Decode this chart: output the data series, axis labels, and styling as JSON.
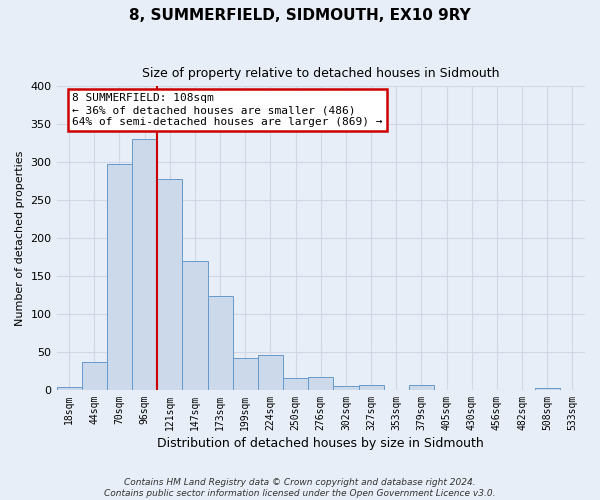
{
  "title": "8, SUMMERFIELD, SIDMOUTH, EX10 9RY",
  "subtitle": "Size of property relative to detached houses in Sidmouth",
  "xlabel": "Distribution of detached houses by size in Sidmouth",
  "ylabel": "Number of detached properties",
  "bin_labels": [
    "18sqm",
    "44sqm",
    "70sqm",
    "96sqm",
    "121sqm",
    "147sqm",
    "173sqm",
    "199sqm",
    "224sqm",
    "250sqm",
    "276sqm",
    "302sqm",
    "327sqm",
    "353sqm",
    "379sqm",
    "405sqm",
    "430sqm",
    "456sqm",
    "482sqm",
    "508sqm",
    "533sqm"
  ],
  "bar_heights": [
    4,
    37,
    297,
    330,
    278,
    169,
    123,
    42,
    46,
    16,
    17,
    5,
    6,
    0,
    6,
    0,
    0,
    0,
    0,
    2,
    0
  ],
  "bar_color": "#ccd9ea",
  "bar_edge_color": "#6699cc",
  "marker_bin_index": 3.5,
  "annotation_text": "8 SUMMERFIELD: 108sqm\n← 36% of detached houses are smaller (486)\n64% of semi-detached houses are larger (869) →",
  "annotation_box_color": "white",
  "annotation_box_edge_color": "#cc0000",
  "marker_line_color": "#cc0000",
  "grid_color": "#d0d8e8",
  "footer_line1": "Contains HM Land Registry data © Crown copyright and database right 2024.",
  "footer_line2": "Contains public sector information licensed under the Open Government Licence v3.0.",
  "ylim": [
    0,
    400
  ],
  "yticks": [
    0,
    50,
    100,
    150,
    200,
    250,
    300,
    350,
    400
  ],
  "bg_color": "#e8eef7"
}
